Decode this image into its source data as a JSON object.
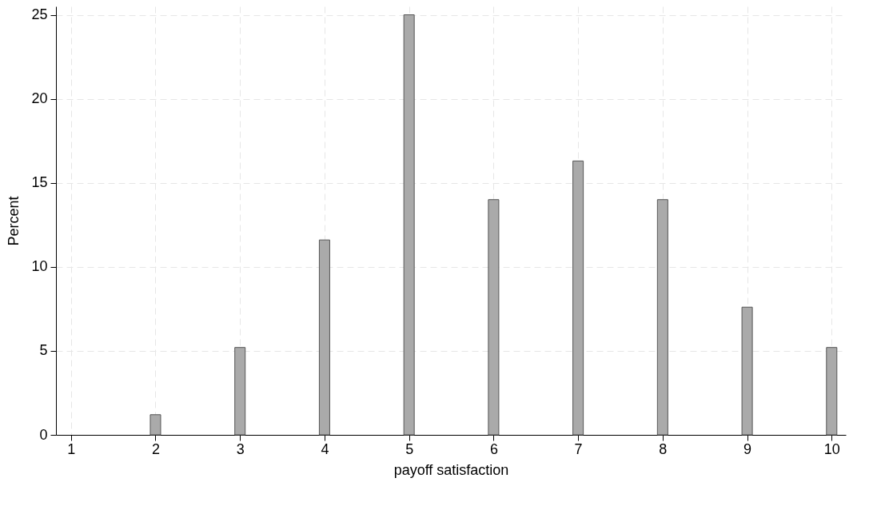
{
  "chart_data": {
    "type": "bar",
    "xlabel": "payoff satisfaction",
    "ylabel": "Percent",
    "x": [
      2,
      3,
      4,
      5,
      6,
      7,
      8,
      9,
      10
    ],
    "values": [
      1.2,
      5.2,
      11.6,
      25,
      14,
      16.3,
      14,
      7.6,
      5.2
    ],
    "color": "#aaaaaa",
    "xlim": [
      0.87,
      10.12
    ],
    "xticks": [
      1,
      2,
      3,
      4,
      5,
      6,
      7,
      8,
      9,
      10
    ],
    "ylim": [
      0,
      25.5
    ],
    "yticks": [
      0,
      5,
      10,
      15,
      20,
      25
    ],
    "grid": true
  }
}
